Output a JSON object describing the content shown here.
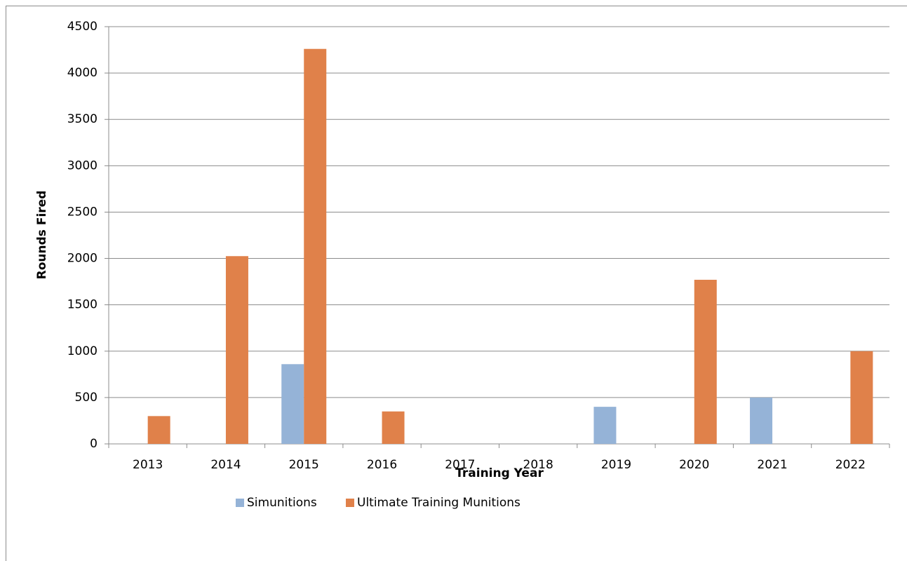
{
  "chart_data": {
    "type": "bar",
    "x_label": "Training Year",
    "y_label": "Rounds Fired",
    "categories": [
      "2013",
      "2014",
      "2015",
      "2016",
      "2017",
      "2018",
      "2019",
      "2020",
      "2021",
      "2022"
    ],
    "series": [
      {
        "name": "Simunitions",
        "color": "#95b3d7",
        "values": [
          0,
          0,
          860,
          0,
          0,
          0,
          400,
          0,
          500,
          0
        ]
      },
      {
        "name": "Ultimate Training Munitions",
        "color": "#e0814a",
        "values": [
          300,
          2025,
          4260,
          350,
          0,
          0,
          0,
          1770,
          0,
          1000
        ]
      }
    ],
    "ylim": [
      0,
      4500
    ],
    "yticks": [
      0,
      500,
      1000,
      1500,
      2000,
      2500,
      3000,
      3500,
      4000,
      4500
    ],
    "grid": true,
    "legend": "bottom"
  }
}
